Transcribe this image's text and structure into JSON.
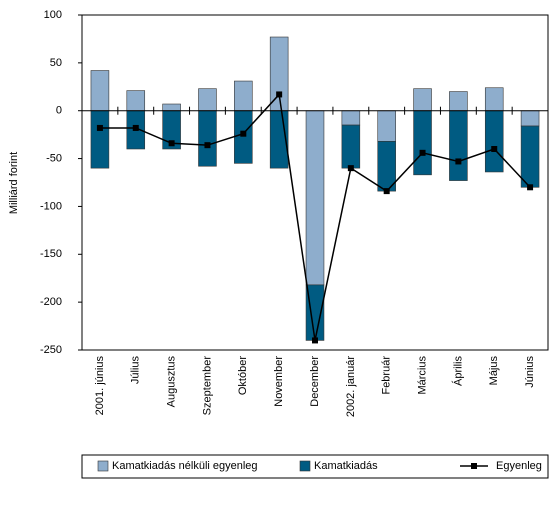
{
  "chart_data": {
    "type": "bar-line",
    "y_label": "Milliárd forint",
    "categories": [
      "2001. június",
      "Július",
      "Augusztus",
      "Szeptember",
      "Október",
      "November",
      "December",
      "2002. január",
      "Február",
      "Március",
      "Április",
      "Május",
      "Június"
    ],
    "series": [
      {
        "name": "Kamatkiadás nélküli egyenleg",
        "type": "bar",
        "color": "#8eadcc",
        "values": [
          42,
          21,
          7,
          23,
          31,
          77,
          -182,
          -15,
          -32,
          23,
          20,
          24,
          -16
        ]
      },
      {
        "name": "Kamatkiadás",
        "type": "bar",
        "color": "#005b82",
        "values": [
          -60,
          -40,
          -40,
          -58,
          -55,
          -60,
          -58,
          -45,
          -52,
          -67,
          -73,
          -64,
          -64
        ]
      },
      {
        "name": "Egyenleg",
        "type": "line",
        "color": "#000000",
        "values": [
          -18,
          -18,
          -34,
          -36,
          -24,
          17,
          -240,
          -60,
          -84,
          -44,
          -53,
          -40,
          -80
        ]
      }
    ],
    "ylim": [
      -250,
      100
    ],
    "yticks": [
      100,
      50,
      0,
      -50,
      -100,
      -150,
      -200,
      -250
    ]
  }
}
